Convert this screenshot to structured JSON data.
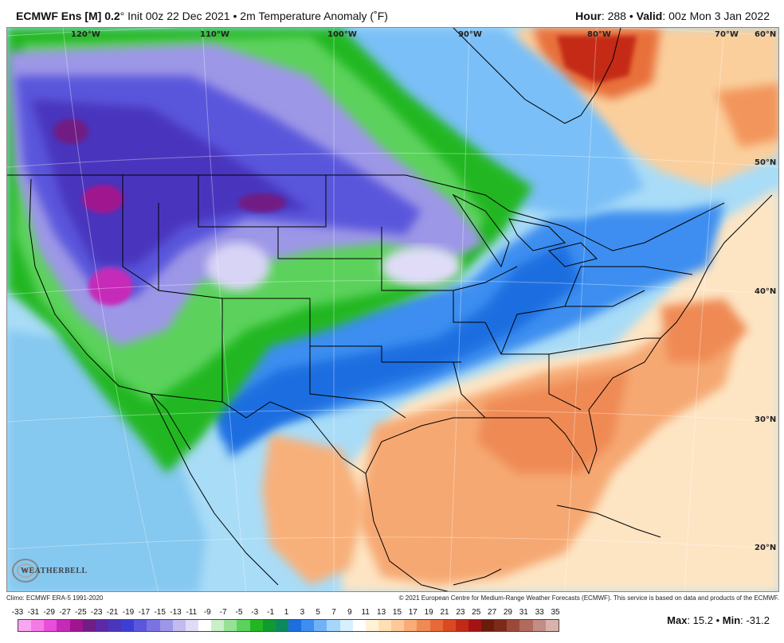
{
  "header": {
    "model": "ECMWF Ens [M] 0.2",
    "degree": "°",
    "init": " Init 00z 22 Dec 2021",
    "bullet": " • ",
    "field": "2m Temperature Anomaly (˚F)",
    "hour_label": "Hour",
    "hour_value": ": 288",
    "valid_label": "Valid",
    "valid_value": ": 00z Mon 3 Jan 2022"
  },
  "map": {
    "lon_labels": [
      "120°W",
      "110°W",
      "100°W",
      "90°W",
      "80°W",
      "70°W"
    ],
    "lat_labels": [
      "60°N",
      "50°N",
      "40°N",
      "30°N",
      "20°N"
    ]
  },
  "footer": {
    "climo": "Climo: ECMWF ERA-5 1991-2020",
    "copyright": "© 2021 European Centre for Medium-Range Weather Forecasts (ECMWF). This service is based on data and products of the ECMWF."
  },
  "colorbar": {
    "ticks": [
      "-33",
      "-31",
      "-29",
      "-27",
      "-25",
      "-23",
      "-21",
      "-19",
      "-17",
      "-15",
      "-13",
      "-11",
      "-9",
      "-7",
      "-5",
      "-3",
      "-1",
      "1",
      "3",
      "5",
      "7",
      "9",
      "11",
      "13",
      "15",
      "17",
      "19",
      "21",
      "23",
      "25",
      "27",
      "29",
      "31",
      "33",
      "35"
    ],
    "colors": [
      "#f9a6f2",
      "#f47be6",
      "#e84fd8",
      "#c52ab8",
      "#a0148f",
      "#6f1e83",
      "#5c2aa6",
      "#4a36bd",
      "#3d3fd4",
      "#5a57dc",
      "#7a73e1",
      "#9d97e7",
      "#c2bbf0",
      "#e0dcf8",
      "#ffffff",
      "#c9f0c8",
      "#96e196",
      "#5bd25b",
      "#22b722",
      "#109a30",
      "#0b8a5e",
      "#1f6ee0",
      "#3d8ef0",
      "#6fb2f7",
      "#a6d6fb",
      "#d6f0fd",
      "#ffffff",
      "#fff3d4",
      "#ffe0b5",
      "#fdc99a",
      "#f8ad78",
      "#ef8a55",
      "#e66a37",
      "#d94a24",
      "#c22a17",
      "#a51212",
      "#6a1c0c",
      "#7e2a18",
      "#9a4a3b",
      "#b06a5e",
      "#c28d85",
      "#d9b2ac"
    ]
  },
  "stats": {
    "max_label": "Max",
    "max_value": ": 15.2",
    "sep": " • ",
    "min_label": "Min",
    "min_value": ": -31.2"
  },
  "logo": {
    "text": "WEATHERBELL"
  }
}
